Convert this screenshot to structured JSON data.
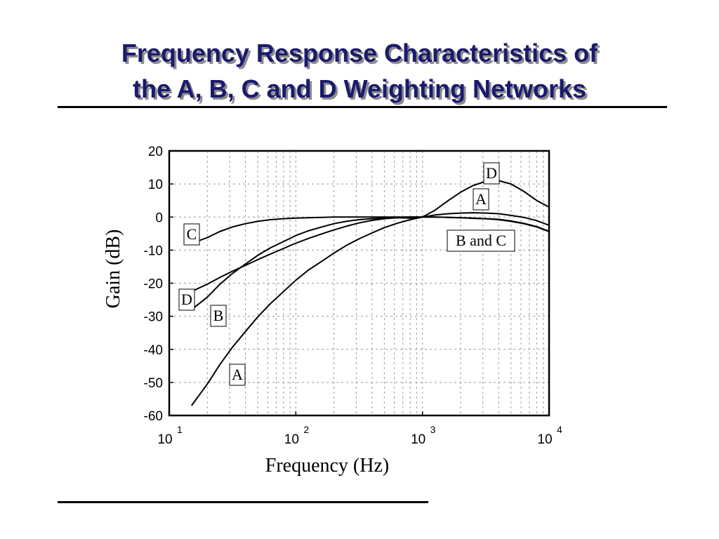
{
  "title": {
    "line1": "Frequency Response Characteristics of",
    "line2": "the A, B, C and D Weighting Networks"
  },
  "colors": {
    "title": "#1a1a6e",
    "title_shadow": "#8c8c8c",
    "lines": "#000000"
  },
  "chart_data": {
    "type": "line",
    "xscale": "log",
    "xlim": [
      10,
      10000
    ],
    "ylim": [
      -60,
      20
    ],
    "xlabel": "Frequency (Hz)",
    "ylabel": "Gain (dB)",
    "grid": true,
    "xticks": [
      {
        "base": "10",
        "exp": "1"
      },
      {
        "base": "10",
        "exp": "2"
      },
      {
        "base": "10",
        "exp": "3"
      },
      {
        "base": "10",
        "exp": "4"
      }
    ],
    "yticks": [
      "20",
      "10",
      "0",
      "-10",
      "-20",
      "-30",
      "-40",
      "-50",
      "-60"
    ],
    "series": [
      {
        "name": "A",
        "x": [
          15,
          20,
          25,
          31.5,
          40,
          50,
          63,
          80,
          100,
          125,
          160,
          200,
          250,
          315,
          400,
          500,
          630,
          800,
          1000,
          1250,
          1600,
          2000,
          2500,
          3150,
          4000,
          5000,
          6300,
          8000,
          10000
        ],
        "y": [
          -57,
          -50.5,
          -44.7,
          -39.4,
          -34.6,
          -30.2,
          -26.2,
          -22.5,
          -19.1,
          -16.1,
          -13.4,
          -10.9,
          -8.6,
          -6.6,
          -4.8,
          -3.2,
          -1.9,
          -0.8,
          0,
          0.6,
          1.0,
          1.2,
          1.3,
          1.2,
          1.0,
          0.5,
          -0.1,
          -1.1,
          -2.5
        ]
      },
      {
        "name": "B",
        "x": [
          15,
          20,
          25,
          31.5,
          40,
          50,
          63,
          80,
          100,
          125,
          160,
          200,
          250,
          315,
          400,
          500,
          630,
          800,
          1000,
          1250,
          1600,
          2000,
          2500,
          3150,
          4000,
          5000,
          6300,
          8000,
          10000
        ],
        "y": [
          -28,
          -24.2,
          -20.4,
          -17.1,
          -14.2,
          -11.6,
          -9.3,
          -7.4,
          -5.6,
          -4.2,
          -3.0,
          -2.0,
          -1.3,
          -0.8,
          -0.5,
          -0.3,
          -0.1,
          0,
          0,
          0,
          -0.1,
          -0.2,
          -0.4,
          -0.5,
          -0.7,
          -1.2,
          -1.9,
          -2.9,
          -4.3
        ]
      },
      {
        "name": "C",
        "x": [
          15,
          20,
          25,
          31.5,
          40,
          50,
          63,
          80,
          100,
          125,
          160,
          200,
          250,
          315,
          400,
          500,
          630,
          800,
          1000,
          1250,
          1600,
          2000,
          2500,
          3150,
          4000,
          5000,
          6300,
          8000,
          10000
        ],
        "y": [
          -8,
          -6.2,
          -4.4,
          -3.0,
          -2.0,
          -1.3,
          -0.8,
          -0.5,
          -0.3,
          -0.2,
          -0.1,
          0,
          0,
          0,
          0,
          0,
          0,
          0,
          0,
          0,
          -0.1,
          -0.2,
          -0.3,
          -0.5,
          -0.8,
          -1.3,
          -2.0,
          -3.0,
          -4.4
        ]
      },
      {
        "name": "D",
        "x": [
          15,
          20,
          25,
          31.5,
          40,
          50,
          63,
          80,
          100,
          125,
          160,
          200,
          250,
          315,
          400,
          500,
          630,
          800,
          1000,
          1250,
          1600,
          2000,
          2500,
          3150,
          4000,
          5000,
          6300,
          8000,
          10000
        ],
        "y": [
          -22.5,
          -20.3,
          -18.3,
          -16.4,
          -14.6,
          -12.9,
          -11.2,
          -9.5,
          -7.9,
          -6.5,
          -5.1,
          -3.9,
          -2.8,
          -1.8,
          -1.0,
          -0.5,
          -0.2,
          -0.3,
          0,
          2.0,
          5.0,
          7.5,
          9.5,
          10.8,
          11.0,
          10.0,
          7.8,
          5.0,
          3.0
        ]
      }
    ],
    "annotations": [
      "D",
      "A",
      "C",
      "B and C",
      "D",
      "B",
      "A"
    ]
  }
}
